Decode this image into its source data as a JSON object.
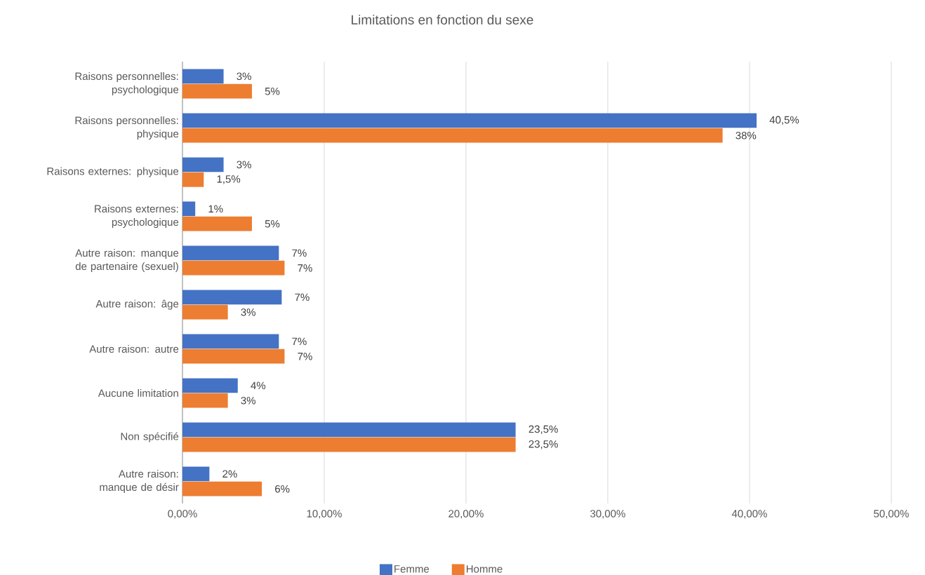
{
  "chart_data": {
    "type": "bar",
    "orientation": "horizontal",
    "title": "Limitations en fonction du sexe",
    "categories": [
      "Raisons personnelles: psychologique",
      "Raisons personnelles: physique",
      "Raisons externes: physique",
      "Raisons externes: psychologique",
      "Autre raison: manque de partenaire (sexuel)",
      "Autre raison: âge",
      "Autre raison: autre",
      "Aucune limitation",
      "Non spécifié",
      "Autre raison: manque de désir"
    ],
    "series": [
      {
        "name": "Femme",
        "color": "#4472c4",
        "values": [
          2.9,
          40.5,
          2.9,
          0.9,
          6.8,
          7,
          6.8,
          3.9,
          23.5,
          1.9
        ],
        "value_labels": [
          "3%",
          "40,5%",
          "3%",
          "1%",
          "7%",
          "7%",
          "7%",
          "4%",
          "23,5%",
          "2%"
        ]
      },
      {
        "name": "Homme",
        "color": "#ed7d31",
        "values": [
          4.9,
          38.1,
          1.5,
          4.9,
          7.2,
          3.2,
          7.2,
          3.2,
          23.5,
          5.6
        ],
        "value_labels": [
          "5%",
          "38%",
          "1,5%",
          "5%",
          "7%",
          "3%",
          "7%",
          "3%",
          "23,5%",
          "6%"
        ]
      }
    ],
    "xlim": [
      0,
      50
    ],
    "xticks": [
      {
        "value": 0,
        "label": "0,00%"
      },
      {
        "value": 10,
        "label": "10,00%"
      },
      {
        "value": 20,
        "label": "20,00%"
      },
      {
        "value": 30,
        "label": "30,00%"
      },
      {
        "value": 40,
        "label": "40,00%"
      },
      {
        "value": 50,
        "label": "50,00%"
      }
    ],
    "grid": "x",
    "legend": "bottom"
  }
}
